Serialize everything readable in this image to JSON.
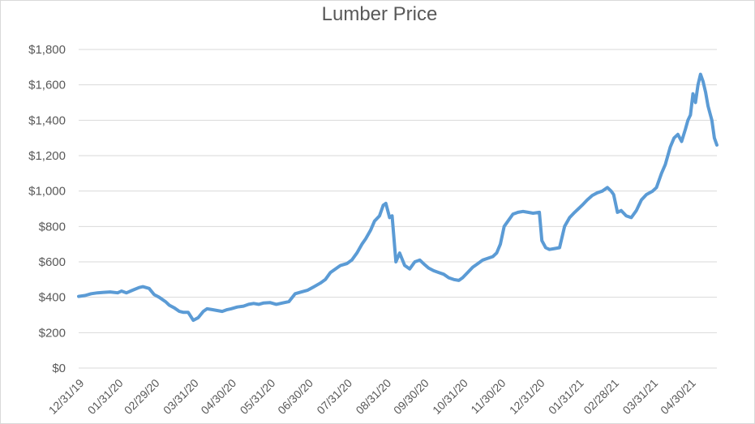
{
  "chart_data": {
    "type": "line",
    "title": "Lumber Price",
    "xlabel": "",
    "ylabel": "",
    "ylim": [
      0,
      1800
    ],
    "yticks": [
      0,
      200,
      400,
      600,
      800,
      1000,
      1200,
      1400,
      1600,
      1800
    ],
    "ytick_labels": [
      "$0",
      "$200",
      "$400",
      "$600",
      "$800",
      "$1,000",
      "$1,200",
      "$1,400",
      "$1,600",
      "$1,800"
    ],
    "xlim": [
      "2019-12-31",
      "2021-05-21"
    ],
    "xticks": [
      "2019-12-31",
      "2020-01-31",
      "2020-02-29",
      "2020-03-31",
      "2020-04-30",
      "2020-05-31",
      "2020-06-30",
      "2020-07-31",
      "2020-08-31",
      "2020-09-30",
      "2020-10-31",
      "2020-11-30",
      "2020-12-31",
      "2021-01-31",
      "2021-02-28",
      "2021-03-31",
      "2021-04-30"
    ],
    "xtick_labels": [
      "12/31/19",
      "01/31/20",
      "02/29/20",
      "03/31/20",
      "04/30/20",
      "05/31/20",
      "06/30/20",
      "07/31/20",
      "08/31/20",
      "09/30/20",
      "10/31/20",
      "11/30/20",
      "12/31/20",
      "01/31/21",
      "02/28/21",
      "03/31/21",
      "04/30/21"
    ],
    "grid": true,
    "legend": "none",
    "series_color": "#5b9bd5",
    "series": [
      {
        "x": [
          "2019-12-31",
          "2020-01-05",
          "2020-01-10",
          "2020-01-15",
          "2020-01-20",
          "2020-01-25",
          "2020-01-31",
          "2020-02-03",
          "2020-02-07",
          "2020-02-12",
          "2020-02-17",
          "2020-02-20",
          "2020-02-25",
          "2020-02-29",
          "2020-03-04",
          "2020-03-09",
          "2020-03-12",
          "2020-03-16",
          "2020-03-20",
          "2020-03-23",
          "2020-03-27",
          "2020-03-31",
          "2020-04-04",
          "2020-04-08",
          "2020-04-11",
          "2020-04-15",
          "2020-04-19",
          "2020-04-23",
          "2020-04-27",
          "2020-04-30",
          "2020-05-05",
          "2020-05-10",
          "2020-05-14",
          "2020-05-18",
          "2020-05-22",
          "2020-05-26",
          "2020-05-31",
          "2020-06-05",
          "2020-06-10",
          "2020-06-15",
          "2020-06-20",
          "2020-06-25",
          "2020-06-30",
          "2020-07-05",
          "2020-07-10",
          "2020-07-14",
          "2020-07-18",
          "2020-07-22",
          "2020-07-26",
          "2020-07-31",
          "2020-08-04",
          "2020-08-08",
          "2020-08-12",
          "2020-08-15",
          "2020-08-19",
          "2020-08-22",
          "2020-08-26",
          "2020-08-29",
          "2020-08-31",
          "2020-09-03",
          "2020-09-05",
          "2020-09-08",
          "2020-09-11",
          "2020-09-15",
          "2020-09-19",
          "2020-09-23",
          "2020-09-27",
          "2020-09-30",
          "2020-10-04",
          "2020-10-08",
          "2020-10-12",
          "2020-10-16",
          "2020-10-20",
          "2020-10-24",
          "2020-10-28",
          "2020-10-31",
          "2020-11-04",
          "2020-11-08",
          "2020-11-12",
          "2020-11-16",
          "2020-11-20",
          "2020-11-24",
          "2020-11-27",
          "2020-11-30",
          "2020-12-03",
          "2020-12-06",
          "2020-12-10",
          "2020-12-14",
          "2020-12-18",
          "2020-12-22",
          "2020-12-26",
          "2020-12-31",
          "2021-01-02",
          "2021-01-05",
          "2021-01-08",
          "2021-01-12",
          "2021-01-16",
          "2021-01-20",
          "2021-01-24",
          "2021-01-28",
          "2021-01-31",
          "2021-02-03",
          "2021-02-07",
          "2021-02-11",
          "2021-02-15",
          "2021-02-19",
          "2021-02-23",
          "2021-02-26",
          "2021-02-28",
          "2021-03-03",
          "2021-03-06",
          "2021-03-10",
          "2021-03-14",
          "2021-03-18",
          "2021-03-22",
          "2021-03-26",
          "2021-03-31",
          "2021-04-03",
          "2021-04-07",
          "2021-04-10",
          "2021-04-14",
          "2021-04-17",
          "2021-04-20",
          "2021-04-23",
          "2021-04-26",
          "2021-04-28",
          "2021-04-30",
          "2021-05-02",
          "2021-05-04",
          "2021-05-06",
          "2021-05-08",
          "2021-05-10",
          "2021-05-12",
          "2021-05-14",
          "2021-05-17",
          "2021-05-19",
          "2021-05-21"
        ],
        "values": [
          405,
          410,
          420,
          425,
          428,
          430,
          425,
          435,
          425,
          440,
          455,
          460,
          450,
          415,
          400,
          375,
          355,
          340,
          320,
          315,
          315,
          270,
          285,
          320,
          335,
          330,
          325,
          320,
          330,
          335,
          345,
          350,
          360,
          365,
          360,
          368,
          370,
          360,
          368,
          375,
          420,
          430,
          440,
          460,
          480,
          500,
          540,
          560,
          580,
          590,
          610,
          650,
          700,
          730,
          780,
          830,
          860,
          920,
          930,
          850,
          860,
          600,
          650,
          580,
          560,
          600,
          610,
          590,
          565,
          550,
          540,
          530,
          510,
          500,
          495,
          510,
          540,
          570,
          590,
          610,
          620,
          630,
          650,
          700,
          800,
          830,
          870,
          880,
          885,
          880,
          875,
          880,
          720,
          680,
          670,
          675,
          680,
          800,
          850,
          880,
          900,
          920,
          950,
          975,
          990,
          1000,
          1020,
          1000,
          980,
          880,
          890,
          860,
          850,
          890,
          950,
          980,
          1000,
          1020,
          1100,
          1150,
          1250,
          1300,
          1320,
          1280,
          1350,
          1400,
          1430,
          1550,
          1500,
          1600,
          1660,
          1620,
          1560,
          1480,
          1400,
          1300,
          1260
        ]
      }
    ]
  }
}
